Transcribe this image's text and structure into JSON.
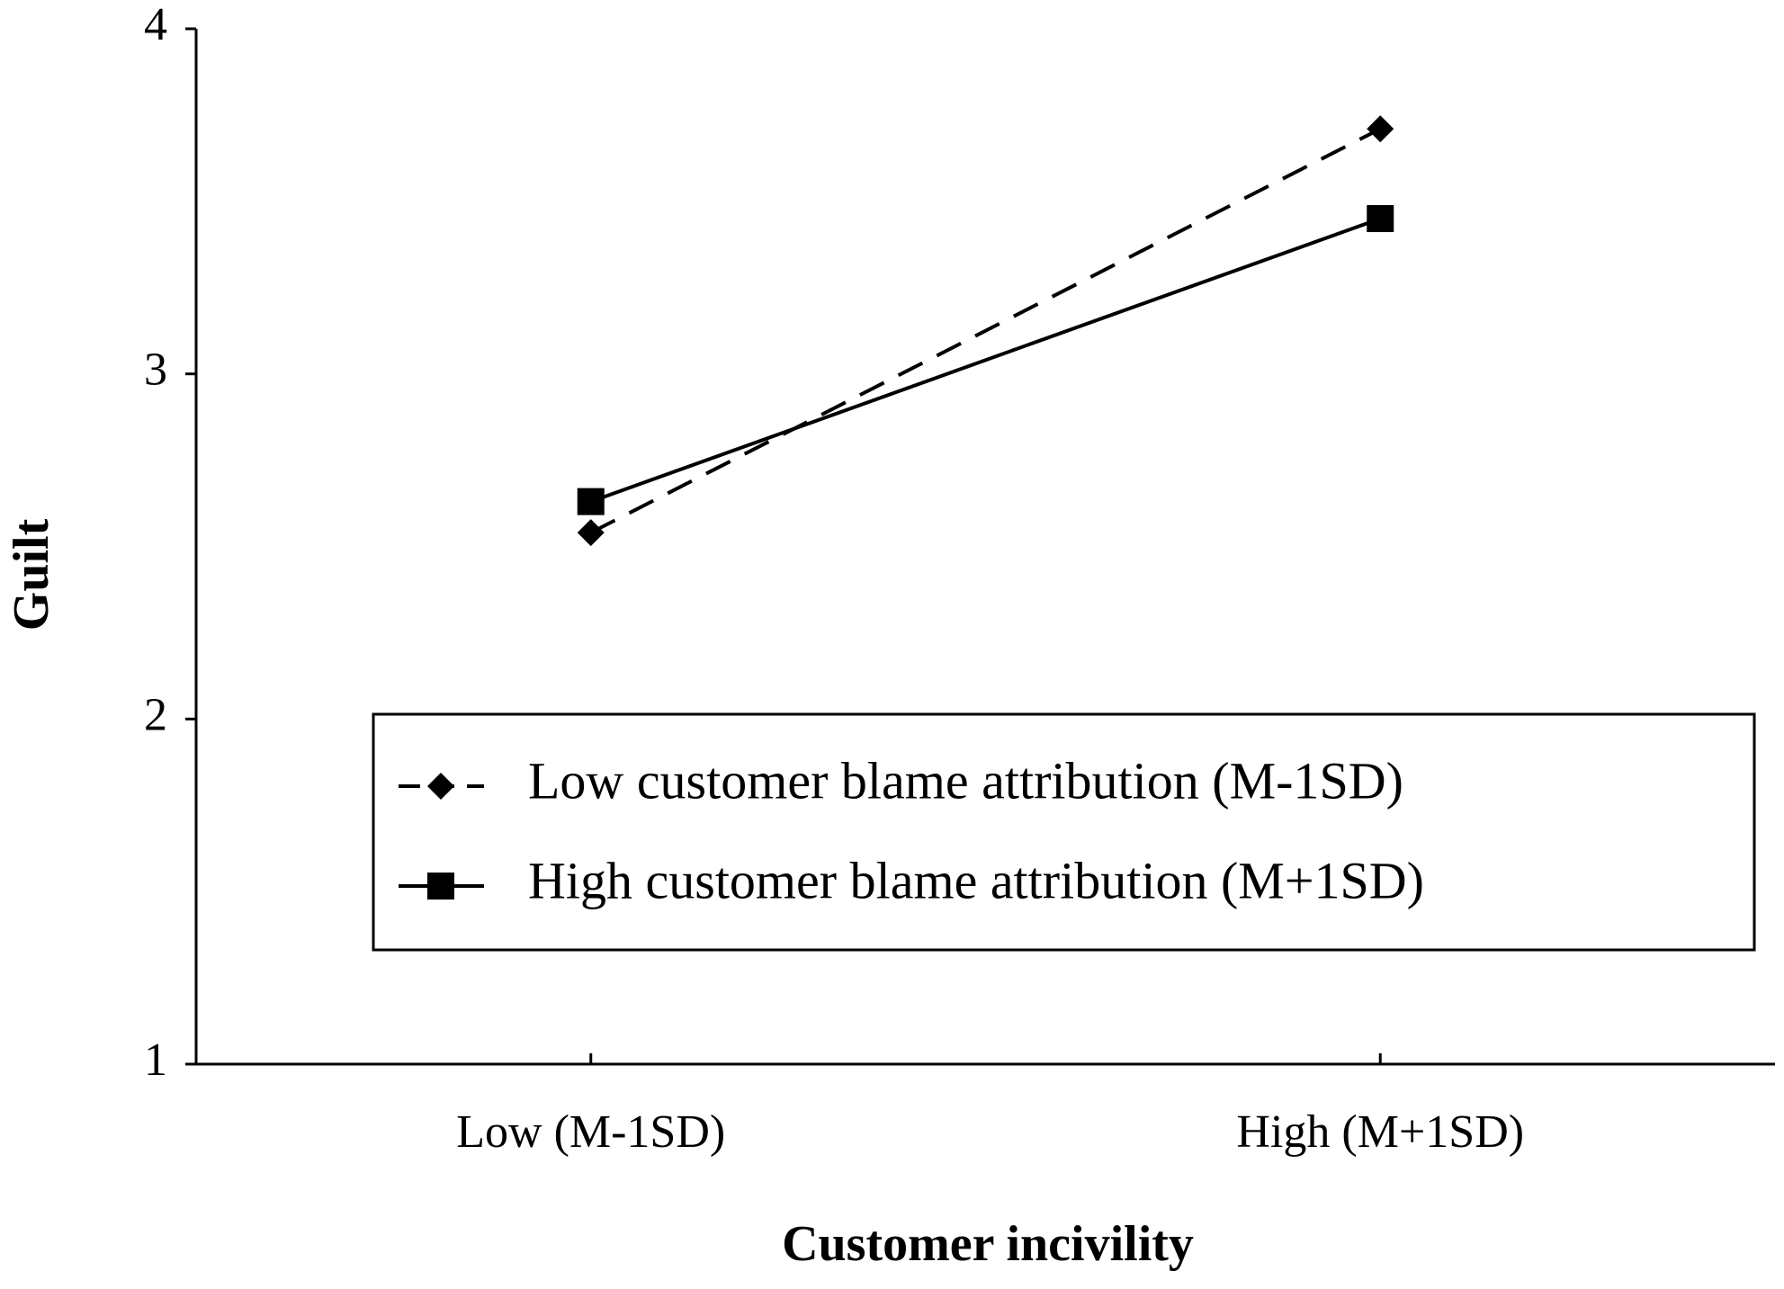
{
  "chart_data": {
    "type": "line",
    "x_label": "Customer incivility",
    "y_label": "Guilt",
    "categories": [
      "Low (M-1SD)",
      "High (M+1SD)"
    ],
    "series": [
      {
        "name": "Low customer blame attribution (M-1SD)",
        "color": "#000000",
        "line_style": "dashed",
        "marker": "diamond",
        "values": [
          2.54,
          3.71
        ]
      },
      {
        "name": "High customer blame attribution (M+1SD)",
        "color": "#000000",
        "line_style": "solid",
        "marker": "square",
        "values": [
          2.63,
          3.45
        ]
      }
    ],
    "ylim": [
      1,
      4
    ],
    "yticks": [
      1,
      2,
      3,
      4
    ],
    "grid": false,
    "legend": "lower-right"
  }
}
